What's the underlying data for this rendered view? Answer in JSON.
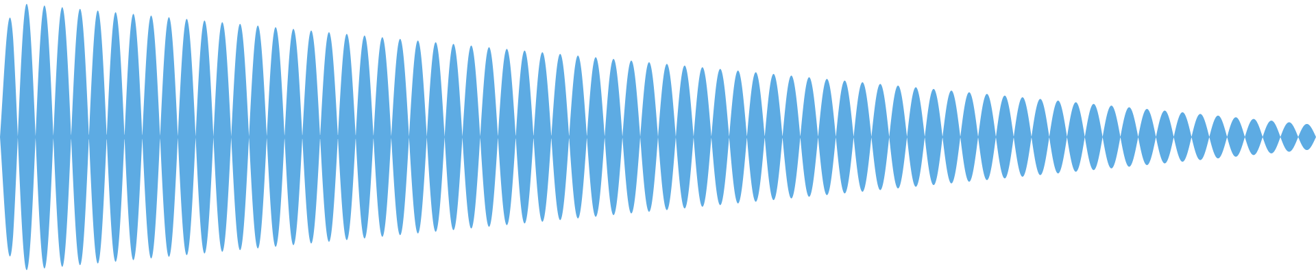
{
  "waveform": {
    "color": "#5dabe3",
    "background": "#ffffff",
    "lobe_count": 74,
    "amplitude_start": 1.0,
    "amplitude_end": 0.09,
    "decay": "linear"
  }
}
